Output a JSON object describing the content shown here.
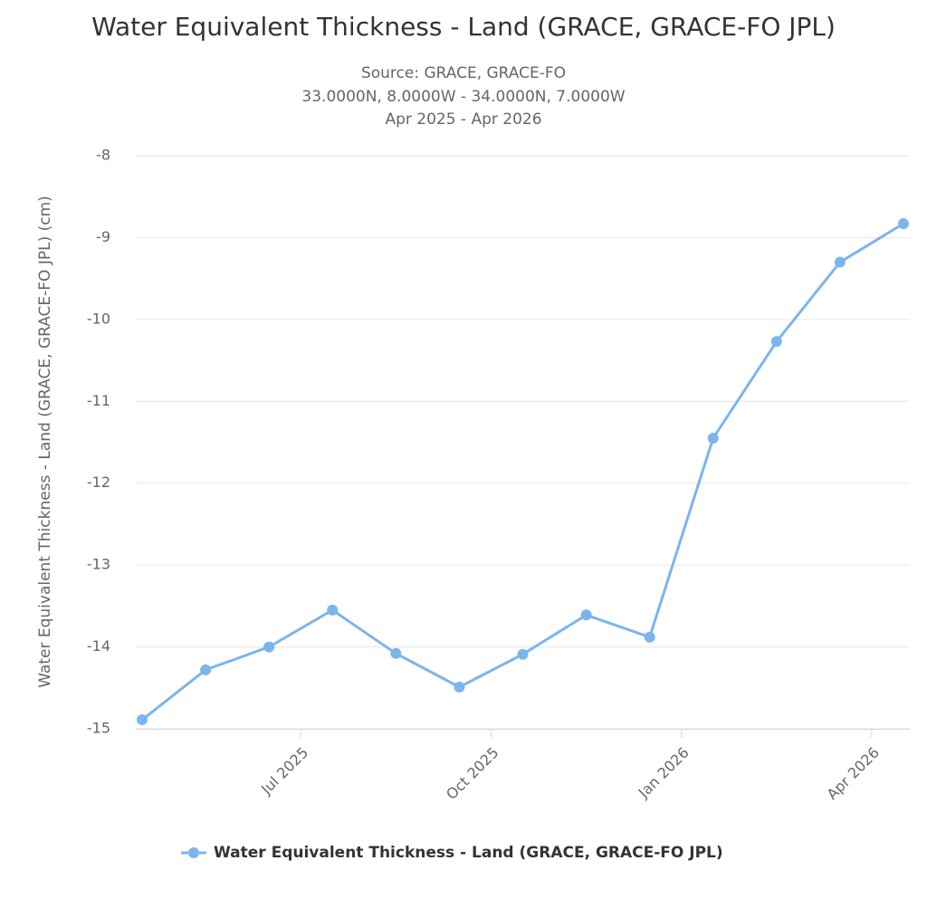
{
  "chart_data": {
    "type": "line",
    "title": "Water Equivalent Thickness - Land (GRACE, GRACE-FO JPL)",
    "subtitle": [
      "Source: GRACE, GRACE-FO",
      "33.0000N, 8.0000W - 34.0000N, 7.0000W",
      "Apr 2025 - Apr 2026"
    ],
    "ylabel": "Water Equivalent Thickness - Land (GRACE, GRACE-FO JPL) (cm)",
    "x": [
      "2025-04",
      "2025-05",
      "2025-06",
      "2025-07",
      "2025-08",
      "2025-09",
      "2025-10",
      "2025-11",
      "2025-12",
      "2026-01",
      "2026-02",
      "2026-03",
      "2026-04"
    ],
    "xlim": [
      "2025-04",
      "2026-04"
    ],
    "xticks": [
      {
        "value": "2025-07",
        "label": "Jul 2025"
      },
      {
        "value": "2025-10",
        "label": "Oct 2025"
      },
      {
        "value": "2026-01",
        "label": "Jan 2026"
      },
      {
        "value": "2026-04",
        "label": "Apr 2026"
      }
    ],
    "series": [
      {
        "name": "Water Equivalent Thickness - Land (GRACE, GRACE-FO JPL)",
        "color": "#7cb5ec",
        "values": [
          -14.89,
          -14.28,
          -14.0,
          -13.55,
          -14.08,
          -14.49,
          -14.09,
          -13.61,
          -13.88,
          -11.45,
          -10.27,
          -9.3,
          -8.83
        ]
      }
    ],
    "ylim": [
      -15,
      -8
    ],
    "yticks": [
      -15,
      -14,
      -13,
      -12,
      -11,
      -10,
      -9,
      -8
    ],
    "grid": true,
    "legend": "bottom"
  }
}
